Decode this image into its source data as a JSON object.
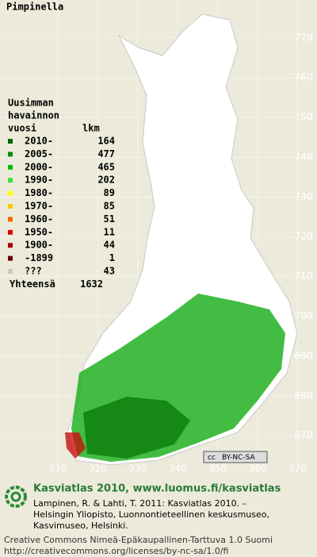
{
  "title": "Pimpinella",
  "legend": {
    "header": [
      "Uusimman",
      "havainnon",
      "vuosi"
    ],
    "count_header": "lkm",
    "rows": [
      {
        "label": "2010-",
        "count": 164,
        "color": "#006400"
      },
      {
        "label": "2005-",
        "count": 477,
        "color": "#009000"
      },
      {
        "label": "2000-",
        "count": 465,
        "color": "#00c000"
      },
      {
        "label": "1990-",
        "count": 202,
        "color": "#40e040"
      },
      {
        "label": "1980-",
        "count": 89,
        "color": "#ffff00"
      },
      {
        "label": "1970-",
        "count": 85,
        "color": "#ffc800"
      },
      {
        "label": "1960-",
        "count": 51,
        "color": "#ff6400"
      },
      {
        "label": "1950-",
        "count": 11,
        "color": "#e00000"
      },
      {
        "label": "1900-",
        "count": 44,
        "color": "#b00000"
      },
      {
        "label": "-1899",
        "count": 1,
        "color": "#640000"
      },
      {
        "label": "???",
        "count": 43,
        "color": "#c8c8c8"
      }
    ],
    "total_label": "Yhteensä",
    "total": 1632
  },
  "axes": {
    "y_ticks": [
      770,
      760,
      750,
      740,
      730,
      720,
      710,
      700,
      690,
      680,
      670
    ],
    "x_ticks": [
      310,
      320,
      330,
      340,
      350,
      360,
      370
    ]
  },
  "badge": {
    "icon": "cc",
    "text": "BY-NC-SA"
  },
  "footer": {
    "heading": "Kasviatlas 2010, www.luomus.fi/kasviatlas",
    "citation": [
      "Lampinen, R. & Lahti, T. 2011: Kasviatlas 2010. –",
      "Helsingin Yliopisto, Luonnontieteellinen keskusmuseo,",
      "Kasvimuseo, Helsinki."
    ],
    "license": [
      "Creative Commons Nimeä-Epäkaupallinen-Tarttuva 1.0 Suomi",
      "http://creativecommons.org/licenses/by-nc-sa/1.0/fi"
    ]
  }
}
